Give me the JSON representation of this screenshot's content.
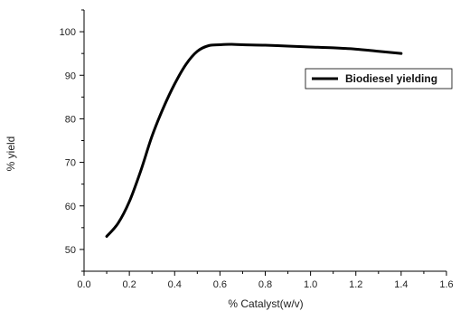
{
  "chart_data": {
    "type": "line",
    "title": "",
    "xlabel": "% Catalyst(w/v)",
    "ylabel": "% yield",
    "xlim": [
      0.0,
      1.6
    ],
    "ylim": [
      45,
      105
    ],
    "x_ticks": [
      "0.0",
      "0.2",
      "0.4",
      "0.6",
      "0.8",
      "1.0",
      "1.2",
      "1.4",
      "1.6"
    ],
    "y_ticks": [
      "50",
      "60",
      "70",
      "80",
      "90",
      "100"
    ],
    "grid": false,
    "legend_position": "right",
    "series": [
      {
        "name": "Biodiesel yielding",
        "color": "#000000",
        "x": [
          0.1,
          0.15,
          0.2,
          0.25,
          0.3,
          0.35,
          0.4,
          0.45,
          0.5,
          0.55,
          0.6,
          0.65,
          0.7,
          0.8,
          0.9,
          1.0,
          1.1,
          1.2,
          1.3,
          1.4
        ],
        "y": [
          53.0,
          56.0,
          61.0,
          68.0,
          76.0,
          82.5,
          88.0,
          92.5,
          95.5,
          96.8,
          97.0,
          97.1,
          97.0,
          96.9,
          96.7,
          96.5,
          96.3,
          96.0,
          95.5,
          95.0
        ]
      }
    ]
  }
}
